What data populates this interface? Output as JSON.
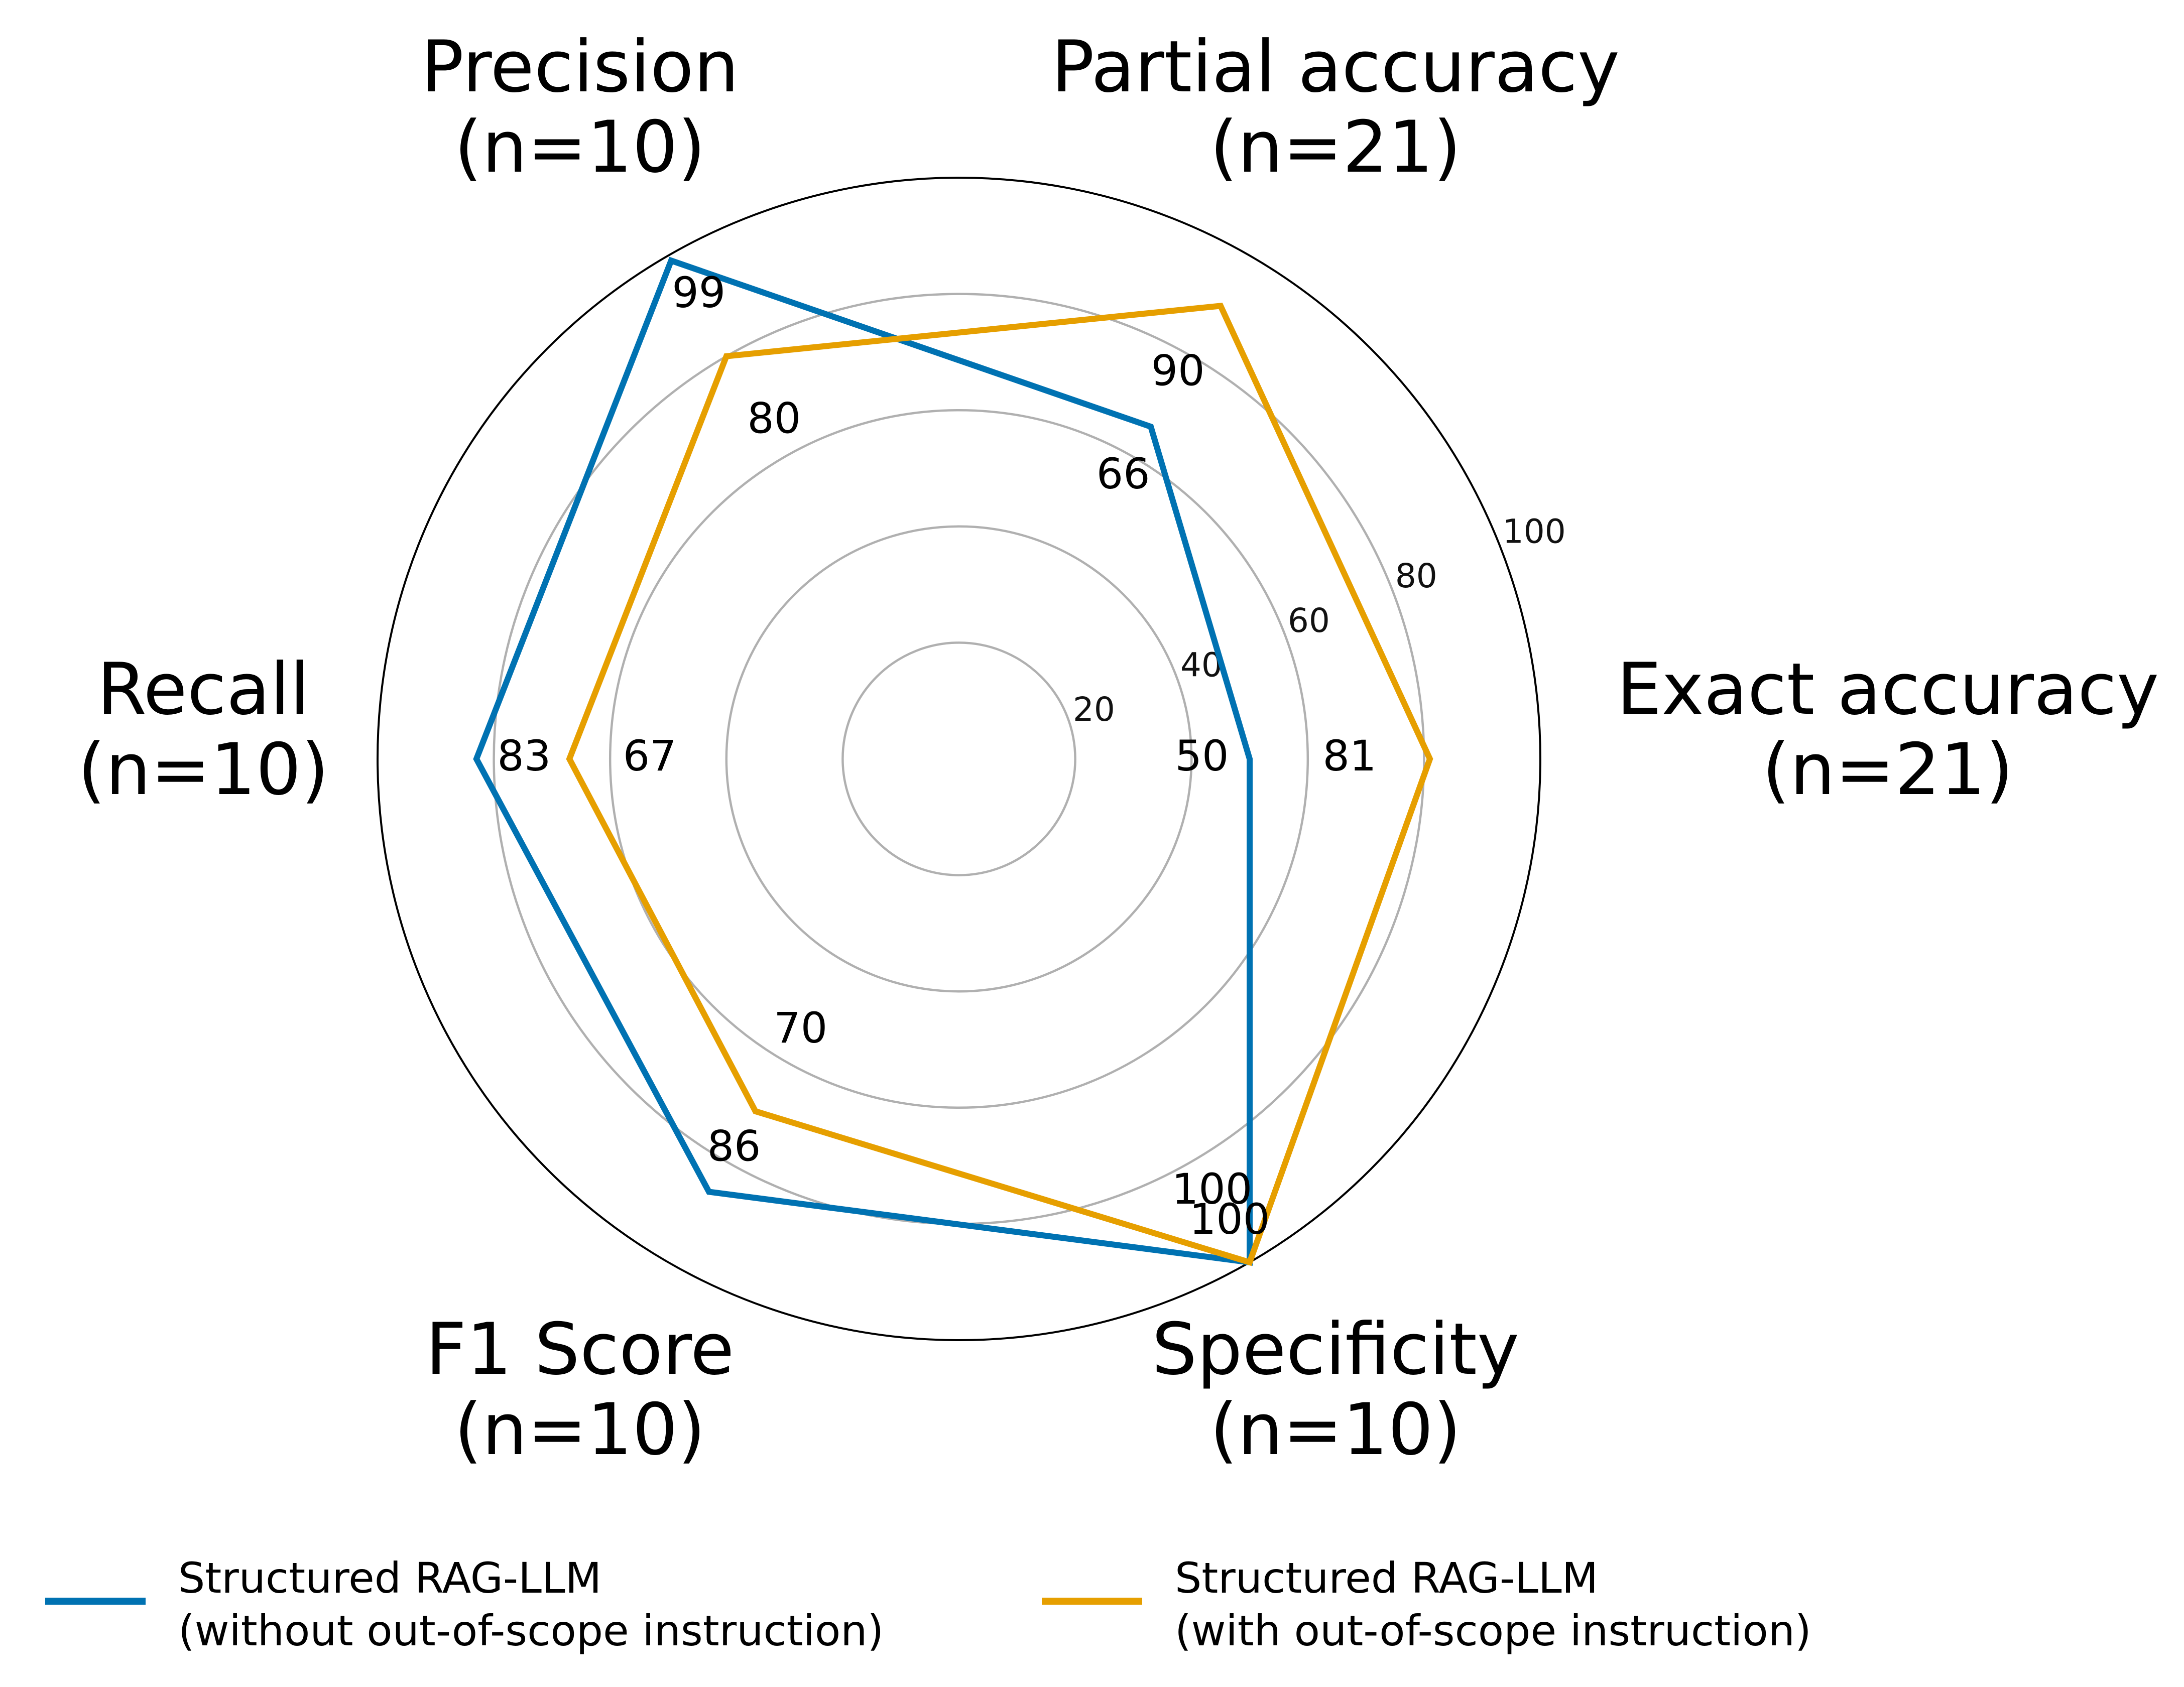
{
  "chart_data": {
    "type": "radar",
    "axes": [
      {
        "name": "Exact accuracy",
        "n": "(n=21)"
      },
      {
        "name": "Partial accuracy",
        "n": "(n=21)"
      },
      {
        "name": "Precision",
        "n": "(n=10)"
      },
      {
        "name": "Recall",
        "n": "(n=10)"
      },
      {
        "name": "F1 Score",
        "n": "(n=10)"
      },
      {
        "name": "Specificity",
        "n": "(n=10)"
      }
    ],
    "rlim": [
      0,
      100
    ],
    "rticks": [
      "20",
      "40",
      "60",
      "80",
      "100"
    ],
    "grid": true,
    "legend_position": "bottom",
    "series": [
      {
        "name": "Structured RAG-LLM\n(without out-of-scope instruction)",
        "color": "#0072B2",
        "values": [
          50,
          66,
          99,
          83,
          86,
          100
        ],
        "labels": [
          "50",
          "66",
          "99",
          "83",
          "86",
          "100"
        ]
      },
      {
        "name": "Structured RAG-LLM\n(with out-of-scope instruction)",
        "color": "#E69F00",
        "values": [
          81,
          90,
          80,
          67,
          70,
          100
        ],
        "labels": [
          "81",
          "90",
          "80",
          "67",
          "70",
          "100"
        ]
      }
    ]
  }
}
